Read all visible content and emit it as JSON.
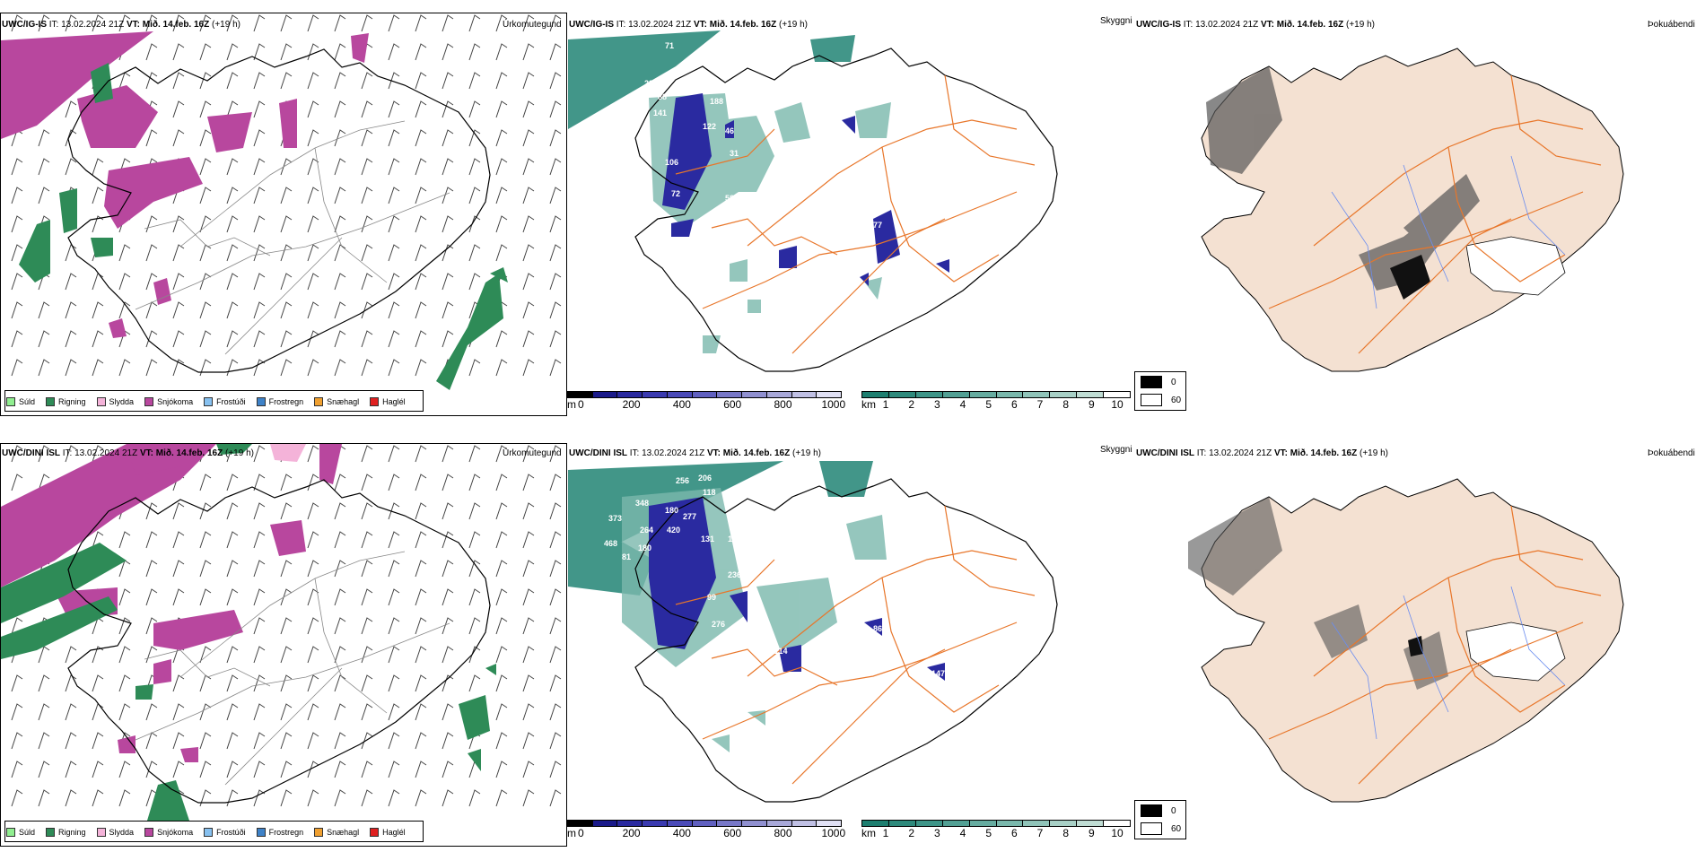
{
  "rows": [
    {
      "left": {
        "model": "UWC/IG-IS",
        "it_label": "IT:",
        "it_value": "13.02.2024 21Z",
        "vt_label": "VT:",
        "vt_value": "Mið. 14.feb. 16Z",
        "lead": "(+19 h)",
        "title_right": "Úrkomutegund"
      },
      "middle": {
        "model": "UWC/IG-IS",
        "it_label": "IT:",
        "it_value": "13.02.2024 21Z",
        "vt_label": "VT:",
        "vt_value": "Mið. 14.feb. 16Z",
        "lead": "(+19 h)",
        "title_right": "Skyggni",
        "labels": [
          "71",
          "287",
          "88",
          "141",
          "122",
          "188",
          "31",
          "106",
          "72",
          "127",
          "46",
          "58",
          "77"
        ]
      },
      "right": {
        "model": "UWC/IG-IS",
        "it_label": "IT:",
        "it_value": "13.02.2024 21Z",
        "vt_label": "VT:",
        "vt_value": "Mið. 14.feb. 16Z",
        "lead": "(+19 h)",
        "title_right": "Þokuábendi"
      }
    },
    {
      "left": {
        "model": "UWC/DINI ISL",
        "it_label": "IT:",
        "it_value": "13.02.2024 21Z",
        "vt_label": "VT:",
        "vt_value": "Mið. 14.feb. 16Z",
        "lead": "(+19 h)",
        "title_right": "Úrkomutegund"
      },
      "middle": {
        "model": "UWC/DINI ISL",
        "it_label": "IT:",
        "it_value": "13.02.2024 21Z",
        "vt_label": "VT:",
        "vt_value": "Mið. 14.feb. 16Z",
        "lead": "(+19 h)",
        "title_right": "Skyggni",
        "labels": [
          "256",
          "206",
          "118",
          "348",
          "180",
          "277",
          "373",
          "264",
          "420",
          "131",
          "150",
          "468",
          "180",
          "81",
          "99",
          "236",
          "276",
          "114",
          "86",
          "147",
          "267",
          "201"
        ]
      },
      "right": {
        "model": "UWC/DINI ISL",
        "it_label": "IT:",
        "it_value": "13.02.2024 21Z",
        "vt_label": "VT:",
        "vt_value": "Mið. 14.feb. 16Z",
        "lead": "(+19 h)",
        "title_right": "Þokuábendi"
      }
    }
  ],
  "legend": [
    {
      "label": "Súld",
      "color": "#90ee90"
    },
    {
      "label": "Rigning",
      "color": "#2e8b57"
    },
    {
      "label": "Slydda",
      "color": "#f4b3d9"
    },
    {
      "label": "Snjókoma",
      "color": "#b8479e"
    },
    {
      "label": "Frostúði",
      "color": "#87c1f0"
    },
    {
      "label": "Frostregn",
      "color": "#3e82c8"
    },
    {
      "label": "Snæhagl",
      "color": "#f0a030"
    },
    {
      "label": "Haglél",
      "color": "#e02020"
    }
  ],
  "colorbar_m": {
    "unit": "m",
    "ticks": [
      "0",
      "200",
      "400",
      "600",
      "800",
      "1000"
    ],
    "colors": [
      "#000000",
      "#1a1a8a",
      "#2a2aa0",
      "#3a3ab0",
      "#4a4ab8",
      "#6060c0",
      "#7878c8",
      "#9090d0",
      "#a8a8d8",
      "#c0c0e4",
      "#e0e0f4"
    ]
  },
  "colorbar_km": {
    "unit": "km",
    "ticks": [
      "1",
      "2",
      "3",
      "4",
      "5",
      "6",
      "7",
      "8",
      "9",
      "10"
    ],
    "colors": [
      "#1e7f70",
      "#2e8a7c",
      "#3e9588",
      "#52a094",
      "#66aca0",
      "#7ab8ac",
      "#90c4b9",
      "#a8d0c6",
      "#c0ddd4",
      "#ffffff"
    ]
  },
  "fog_legend": {
    "top_value": "0",
    "bottom_value": "60",
    "top_color": "#000000",
    "bottom_color": "#ffffff"
  },
  "colors": {
    "land_fog": "#f4e1d2",
    "roads": "#e8762a",
    "rivers": "#6a8cf0",
    "outline": "#000000",
    "snow": "#b8479e",
    "rain": "#2e8b57",
    "sea_green": "#2e8b7c",
    "vis_blue": "#2a2aa0"
  }
}
